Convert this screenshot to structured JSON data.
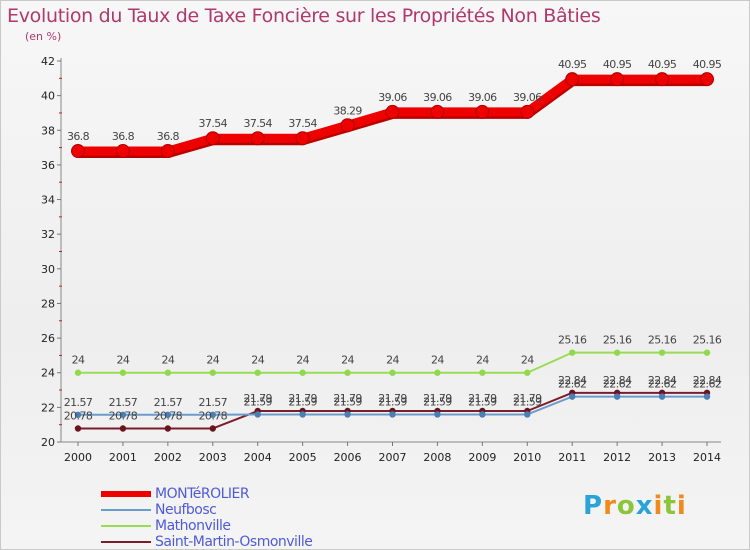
{
  "title": "Evolution du Taux de Taxe Foncière sur les Propriétés Non Bâties",
  "unit": "(en %)",
  "brand": {
    "letters": [
      {
        "char": "P",
        "color": "#2aa3d8"
      },
      {
        "char": "r",
        "color": "#f08a1c"
      },
      {
        "char": "o",
        "color": "#8cc43c"
      },
      {
        "char": "x",
        "color": "#2aa3d8"
      },
      {
        "char": "i",
        "color": "#f08a1c"
      },
      {
        "char": "t",
        "color": "#8cc43c"
      },
      {
        "char": "i",
        "color": "#f08a1c"
      }
    ]
  },
  "chart_data": {
    "type": "line",
    "title": "Evolution du Taux de Taxe Foncière sur les Propriétés Non Bâties",
    "ylabel": "(en %)",
    "xlabel": "",
    "ylim": [
      20,
      42
    ],
    "yticks": [
      20,
      22,
      24,
      26,
      28,
      30,
      32,
      34,
      36,
      38,
      40,
      42
    ],
    "categories": [
      "2000",
      "2001",
      "2002",
      "2003",
      "2004",
      "2005",
      "2006",
      "2007",
      "2008",
      "2009",
      "2010",
      "2011",
      "2012",
      "2013",
      "2014"
    ],
    "series": [
      {
        "name": "MONTéROLIER",
        "color": "#ee0000",
        "values": [
          36.8,
          36.8,
          36.8,
          37.54,
          37.54,
          37.54,
          38.29,
          39.06,
          39.06,
          39.06,
          39.06,
          40.95,
          40.95,
          40.95,
          40.95
        ],
        "labels": [
          "36.8",
          "36.8",
          "36.8",
          "37.54",
          "37.54",
          "37.54",
          "38.29",
          "39.06",
          "39.06",
          "39.06",
          "39.06",
          "40.95",
          "40.95",
          "40.95",
          "40.95"
        ]
      },
      {
        "name": "Neufbosc",
        "color": "#6a9ccc",
        "values": [
          21.57,
          21.57,
          21.57,
          21.57,
          21.59,
          21.59,
          21.59,
          21.59,
          21.59,
          21.59,
          21.59,
          22.62,
          22.62,
          22.62,
          22.62
        ],
        "labels": [
          "21.57",
          "21.57",
          "21.57",
          "21.57",
          "21.59",
          "21.59",
          "21.59",
          "21.59",
          "21.59",
          "21.59",
          "21.59",
          "22.62",
          "22.62",
          "22.62",
          "22.62"
        ]
      },
      {
        "name": "Mathonville",
        "color": "#99dd55",
        "values": [
          24,
          24,
          24,
          24,
          24,
          24,
          24,
          24,
          24,
          24,
          24,
          25.16,
          25.16,
          25.16,
          25.16
        ],
        "labels": [
          "24",
          "24",
          "24",
          "24",
          "24",
          "24",
          "24",
          "24",
          "24",
          "24",
          "24",
          "25.16",
          "25.16",
          "25.16",
          "25.16"
        ]
      },
      {
        "name": "Saint-Martin-Osmonville",
        "color": "#7a1e2a",
        "values": [
          20.78,
          20.78,
          20.78,
          20.78,
          21.79,
          21.79,
          21.79,
          21.79,
          21.79,
          21.79,
          21.79,
          22.84,
          22.84,
          22.84,
          22.84
        ],
        "labels": [
          "20.78",
          "20.78",
          "20.78",
          "20.78",
          "21.79",
          "21.79",
          "21.79",
          "21.79",
          "21.79",
          "21.79",
          "21.79",
          "22.84",
          "22.84",
          "22.84",
          "22.84"
        ]
      }
    ]
  },
  "legend": {
    "text_color": "#4f5bd5",
    "items": [
      {
        "label": "MONTéROLIER",
        "color": "#ee0000"
      },
      {
        "label": "Neufbosc",
        "color": "#6a9ccc"
      },
      {
        "label": "Mathonville",
        "color": "#99dd55"
      },
      {
        "label": "Saint-Martin-Osmonville",
        "color": "#7a1e2a"
      }
    ]
  }
}
